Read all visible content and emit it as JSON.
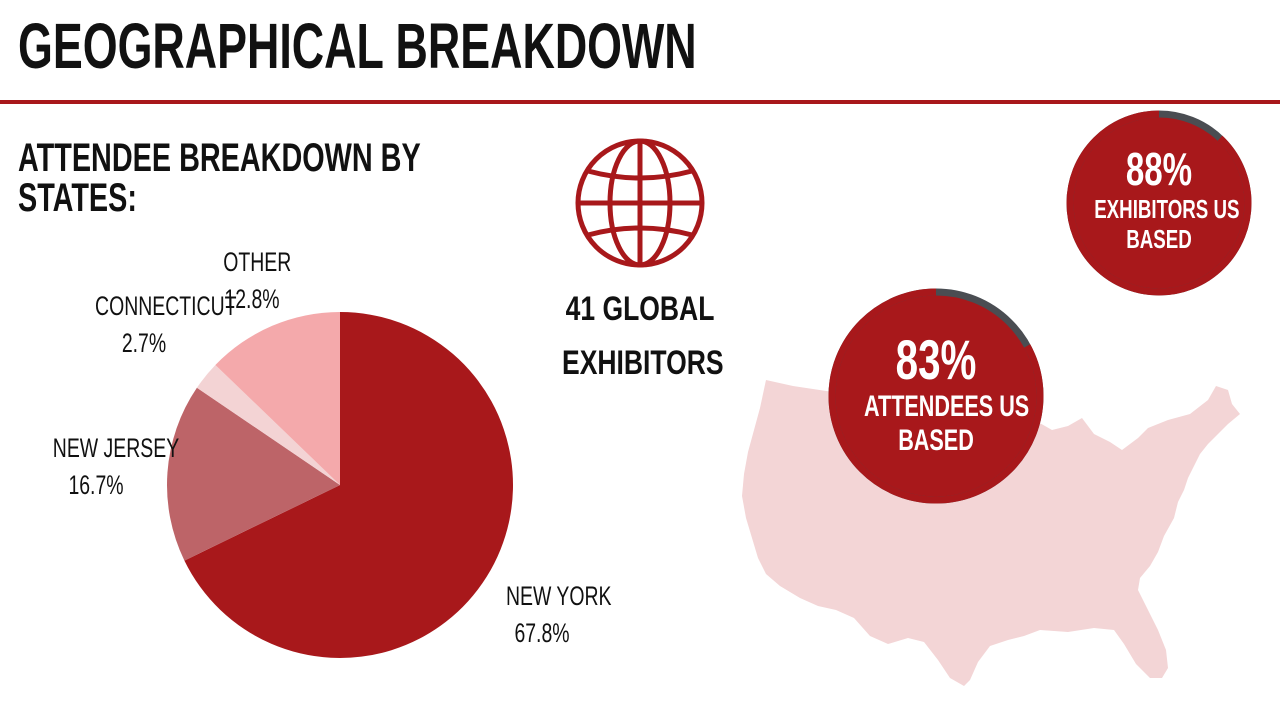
{
  "title": "GEOGRAPHICAL BREAKDOWN",
  "colors": {
    "accent": "#a8181b",
    "ring_track": "#4a4d52",
    "map": "#f3d5d6"
  },
  "chart_data": {
    "type": "pie",
    "title": "ATTENDEE BREAKDOWN BY STATES:",
    "slices": [
      {
        "name": "NEW YORK",
        "label": "67.8%",
        "value": 67.8,
        "color": "#a8181b"
      },
      {
        "name": "NEW JERSEY",
        "label": "16.7%",
        "value": 16.7,
        "color": "#bd6468"
      },
      {
        "name": "CONNECTICUT",
        "label": "2.7%",
        "value": 2.7,
        "color": "#f3d3d4"
      },
      {
        "name": "OTHER",
        "label": "12.8%",
        "value": 12.8,
        "color": "#f4a9ab"
      }
    ]
  },
  "global": {
    "icon": "globe-icon",
    "line1": "41 GLOBAL",
    "line2": "EXHIBITORS"
  },
  "stats": {
    "exhibitors": {
      "pct_text": "88%",
      "pct": 88,
      "cap1": "EXHIBITORS US",
      "cap2": "BASED"
    },
    "attendees": {
      "pct_text": "83%",
      "pct": 83,
      "cap1": "ATTENDEES US",
      "cap2": "BASED"
    }
  },
  "map_icon": "usa-map-silhouette"
}
